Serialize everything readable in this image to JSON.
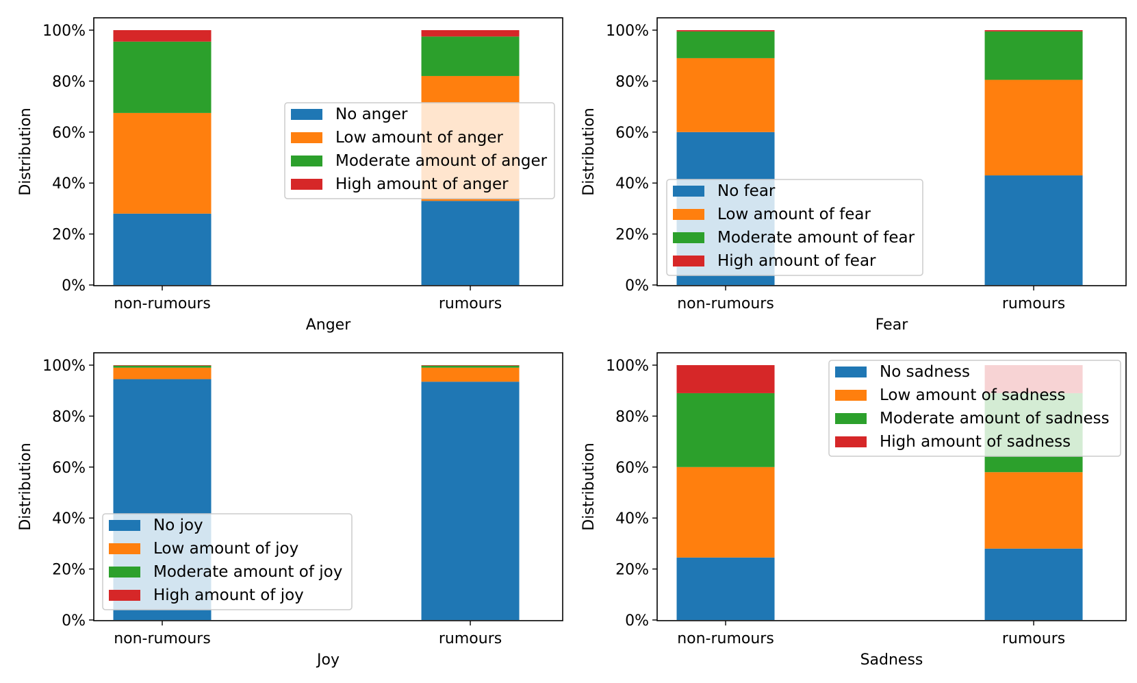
{
  "chart_data": [
    {
      "type": "bar",
      "stacked": true,
      "title": "",
      "xlabel": "Anger",
      "ylabel": "Distribution",
      "ylim": [
        0,
        100
      ],
      "yticks": [
        "0%",
        "20%",
        "40%",
        "60%",
        "80%",
        "100%"
      ],
      "categories": [
        "non-rumours",
        "rumours"
      ],
      "legend_position": "center-right",
      "series": [
        {
          "name": "No anger",
          "color": "#1f77b4",
          "values": [
            28,
            33
          ]
        },
        {
          "name": "Low amount of anger",
          "color": "#ff7f0e",
          "values": [
            39.5,
            49
          ]
        },
        {
          "name": "Moderate amount of anger",
          "color": "#2ca02c",
          "values": [
            28,
            15.5
          ]
        },
        {
          "name": "High amount of anger",
          "color": "#d62728",
          "values": [
            4.5,
            2.5
          ]
        }
      ]
    },
    {
      "type": "bar",
      "stacked": true,
      "title": "",
      "xlabel": "Fear",
      "ylabel": "Distribution",
      "ylim": [
        0,
        100
      ],
      "yticks": [
        "0%",
        "20%",
        "40%",
        "60%",
        "80%",
        "100%"
      ],
      "categories": [
        "non-rumours",
        "rumours"
      ],
      "legend_position": "lower-left",
      "series": [
        {
          "name": "No fear",
          "color": "#1f77b4",
          "values": [
            60,
            43
          ]
        },
        {
          "name": "Low amount of fear",
          "color": "#ff7f0e",
          "values": [
            29,
            37.5
          ]
        },
        {
          "name": "Moderate amount of fear",
          "color": "#2ca02c",
          "values": [
            10.5,
            19
          ]
        },
        {
          "name": "High amount of fear",
          "color": "#d62728",
          "values": [
            0.5,
            0.5
          ]
        }
      ]
    },
    {
      "type": "bar",
      "stacked": true,
      "title": "",
      "xlabel": "Joy",
      "ylabel": "Distribution",
      "ylim": [
        0,
        100
      ],
      "yticks": [
        "0%",
        "20%",
        "40%",
        "60%",
        "80%",
        "100%"
      ],
      "categories": [
        "non-rumours",
        "rumours"
      ],
      "legend_position": "lower-left",
      "series": [
        {
          "name": "No joy",
          "color": "#1f77b4",
          "values": [
            94.5,
            93.5
          ]
        },
        {
          "name": "Low amount of joy",
          "color": "#ff7f0e",
          "values": [
            4.5,
            5.5
          ]
        },
        {
          "name": "Moderate amount of joy",
          "color": "#2ca02c",
          "values": [
            0.8,
            0.8
          ]
        },
        {
          "name": "High amount of joy",
          "color": "#d62728",
          "values": [
            0.2,
            0.2
          ]
        }
      ]
    },
    {
      "type": "bar",
      "stacked": true,
      "title": "",
      "xlabel": "Sadness",
      "ylabel": "Distribution",
      "ylim": [
        0,
        100
      ],
      "yticks": [
        "0%",
        "20%",
        "40%",
        "60%",
        "80%",
        "100%"
      ],
      "categories": [
        "non-rumours",
        "rumours"
      ],
      "legend_position": "upper-right",
      "series": [
        {
          "name": "No sadness",
          "color": "#1f77b4",
          "values": [
            24.5,
            28
          ]
        },
        {
          "name": "Low amount of sadness",
          "color": "#ff7f0e",
          "values": [
            35.5,
            30
          ]
        },
        {
          "name": "Moderate amount of sadness",
          "color": "#2ca02c",
          "values": [
            29,
            31
          ]
        },
        {
          "name": "High amount of sadness",
          "color": "#d62728",
          "values": [
            11,
            11
          ]
        }
      ]
    }
  ]
}
